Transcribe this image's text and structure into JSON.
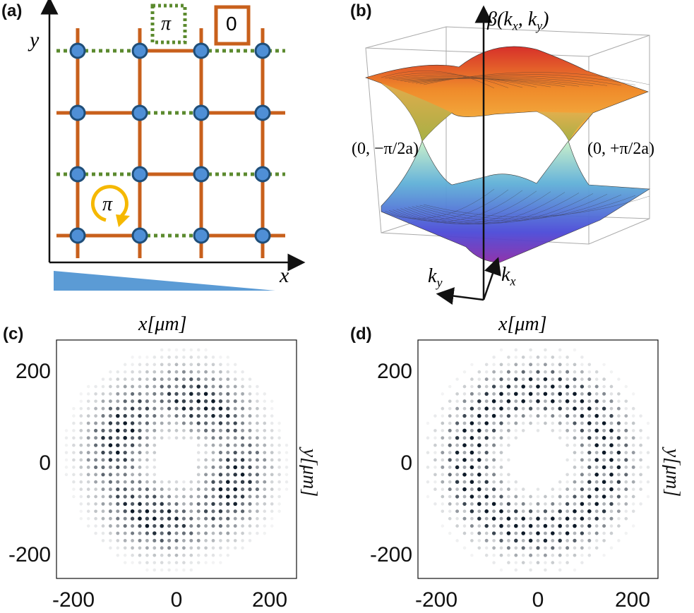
{
  "panels": {
    "a": {
      "label": "(a)",
      "axis_x": "x",
      "axis_y": "y",
      "dotted_legend": "π",
      "solid_legend": "0",
      "flux_label": "π",
      "colors": {
        "solid_bond": "#c8601c",
        "dotted_bond": "#5b8a2e",
        "site": "#4f8fd6",
        "flux": "#f5b800",
        "gradient": "#5b9bd5"
      }
    },
    "b": {
      "label": "(b)",
      "z_label": "β(k",
      "z_sub1": "x",
      "z_mid": ", k",
      "z_sub2": "y",
      "z_end": ")",
      "left_point": "(0, −π/2a)",
      "right_point": "(0, +π/2a)",
      "kx": "k",
      "kx_sub": "x",
      "ky": "k",
      "ky_sub": "y"
    },
    "c": {
      "label": "(c)",
      "top_label": "x[μm]",
      "right_label": "y[μm]",
      "yticks": [
        "200",
        "0",
        "-200"
      ],
      "xticks": [
        "-200",
        "0",
        "200"
      ]
    },
    "d": {
      "label": "(d)",
      "top_label": "x[μm]",
      "right_label": "y[μm]",
      "yticks": [
        "200",
        "0",
        "-200"
      ],
      "xticks": [
        "-200",
        "0",
        "200"
      ]
    }
  }
}
